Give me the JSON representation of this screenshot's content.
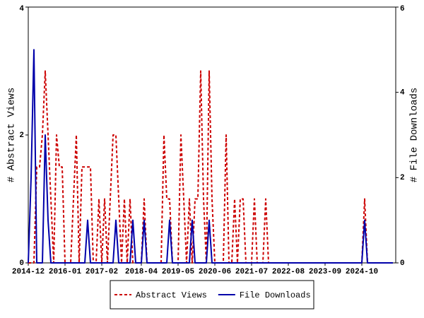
{
  "chart_data": {
    "type": "line",
    "x": [
      "2014-12",
      null,
      null,
      null,
      null,
      null,
      null,
      null,
      null,
      null,
      null,
      null,
      null,
      "2016-01",
      null,
      null,
      null,
      null,
      null,
      null,
      null,
      null,
      null,
      null,
      null,
      null,
      "2017-02",
      null,
      null,
      null,
      null,
      null,
      null,
      null,
      null,
      null,
      null,
      null,
      null,
      null,
      "2018-04",
      null,
      null,
      null,
      null,
      null,
      null,
      null,
      null,
      null,
      null,
      null,
      null,
      "2019-05",
      null,
      null,
      null,
      null,
      null,
      null,
      null,
      null,
      null,
      null,
      null,
      null,
      "2020-06",
      null,
      null,
      null,
      null,
      null,
      null,
      null,
      null,
      null,
      null,
      null,
      null,
      "2021-07",
      null,
      null,
      null,
      null,
      null,
      null,
      null,
      null,
      null,
      null,
      null,
      null,
      "2022-08",
      null,
      null,
      null,
      null,
      null,
      null,
      null,
      null,
      null,
      null,
      null,
      null,
      "2023-09",
      null,
      null,
      null,
      null,
      null,
      null,
      null,
      null,
      null,
      null,
      null,
      null,
      "2024-10",
      null,
      null,
      null,
      null,
      null,
      null,
      null,
      null,
      null,
      null,
      null
    ],
    "y_label": "# Abstract Views",
    "y2_label": "# File Downloads",
    "ylim": [
      0,
      4
    ],
    "yticks": [
      0,
      2,
      4
    ],
    "y2lim": [
      0,
      6
    ],
    "y2ticks": [
      0,
      2,
      4,
      6
    ],
    "grid": false,
    "series": [
      {
        "name": "Abstract Views",
        "color": "#cc0000",
        "line_style": "dashed",
        "values": [
          0,
          0,
          0,
          1.5,
          1.5,
          2,
          3,
          2,
          1,
          0,
          2,
          1.5,
          1.5,
          0,
          0,
          0,
          1,
          2,
          0,
          1.5,
          1.5,
          1.5,
          1.5,
          0,
          0,
          1,
          0,
          1,
          0,
          1,
          2,
          2,
          1,
          0,
          1,
          0,
          1,
          0,
          0,
          0,
          0,
          1,
          0,
          0,
          0,
          0,
          0,
          0,
          2,
          1,
          1,
          0,
          0,
          0,
          2,
          1,
          0,
          1,
          0,
          1,
          1,
          3,
          1,
          0,
          3,
          1,
          0,
          0,
          0,
          0,
          2,
          0,
          0,
          1,
          0,
          1,
          1,
          0,
          0,
          0,
          1,
          0,
          0,
          0,
          1,
          0,
          0,
          0,
          0,
          0,
          0,
          0,
          0,
          0,
          0,
          0,
          0,
          0,
          0,
          0,
          0,
          0,
          0,
          0,
          0,
          0,
          0,
          0,
          0,
          0,
          0,
          0,
          0,
          0,
          0,
          0,
          0,
          0,
          0,
          1,
          0,
          0,
          0,
          0,
          0,
          0,
          0,
          0,
          0,
          0
        ]
      },
      {
        "name": "File Downloads",
        "color": "#0000aa",
        "line_style": "solid",
        "axis": "y2",
        "values": [
          0,
          2,
          5,
          0,
          0,
          0,
          3,
          1,
          0,
          0,
          0,
          0,
          0,
          0,
          0,
          0,
          0,
          0,
          0,
          0,
          0,
          1,
          0,
          0,
          0,
          0,
          0,
          0,
          0,
          0,
          0,
          1,
          0,
          0,
          0,
          0,
          0,
          1,
          0,
          0,
          0,
          1,
          0,
          0,
          0,
          0,
          0,
          0,
          0,
          0,
          1,
          0,
          0,
          0,
          0,
          0,
          0,
          0,
          1,
          0,
          0,
          0,
          0,
          0,
          1,
          0,
          0,
          0,
          0,
          0,
          0,
          0,
          0,
          0,
          0,
          0,
          0,
          0,
          0,
          0,
          0,
          0,
          0,
          0,
          0,
          0,
          0,
          0,
          0,
          0,
          0,
          0,
          0,
          0,
          0,
          0,
          0,
          0,
          0,
          0,
          0,
          0,
          0,
          0,
          0,
          0,
          0,
          0,
          0,
          0,
          0,
          0,
          0,
          0,
          0,
          0,
          0,
          0,
          0,
          1,
          0,
          0,
          0,
          0,
          0,
          0,
          0,
          0,
          0,
          0
        ]
      }
    ]
  }
}
